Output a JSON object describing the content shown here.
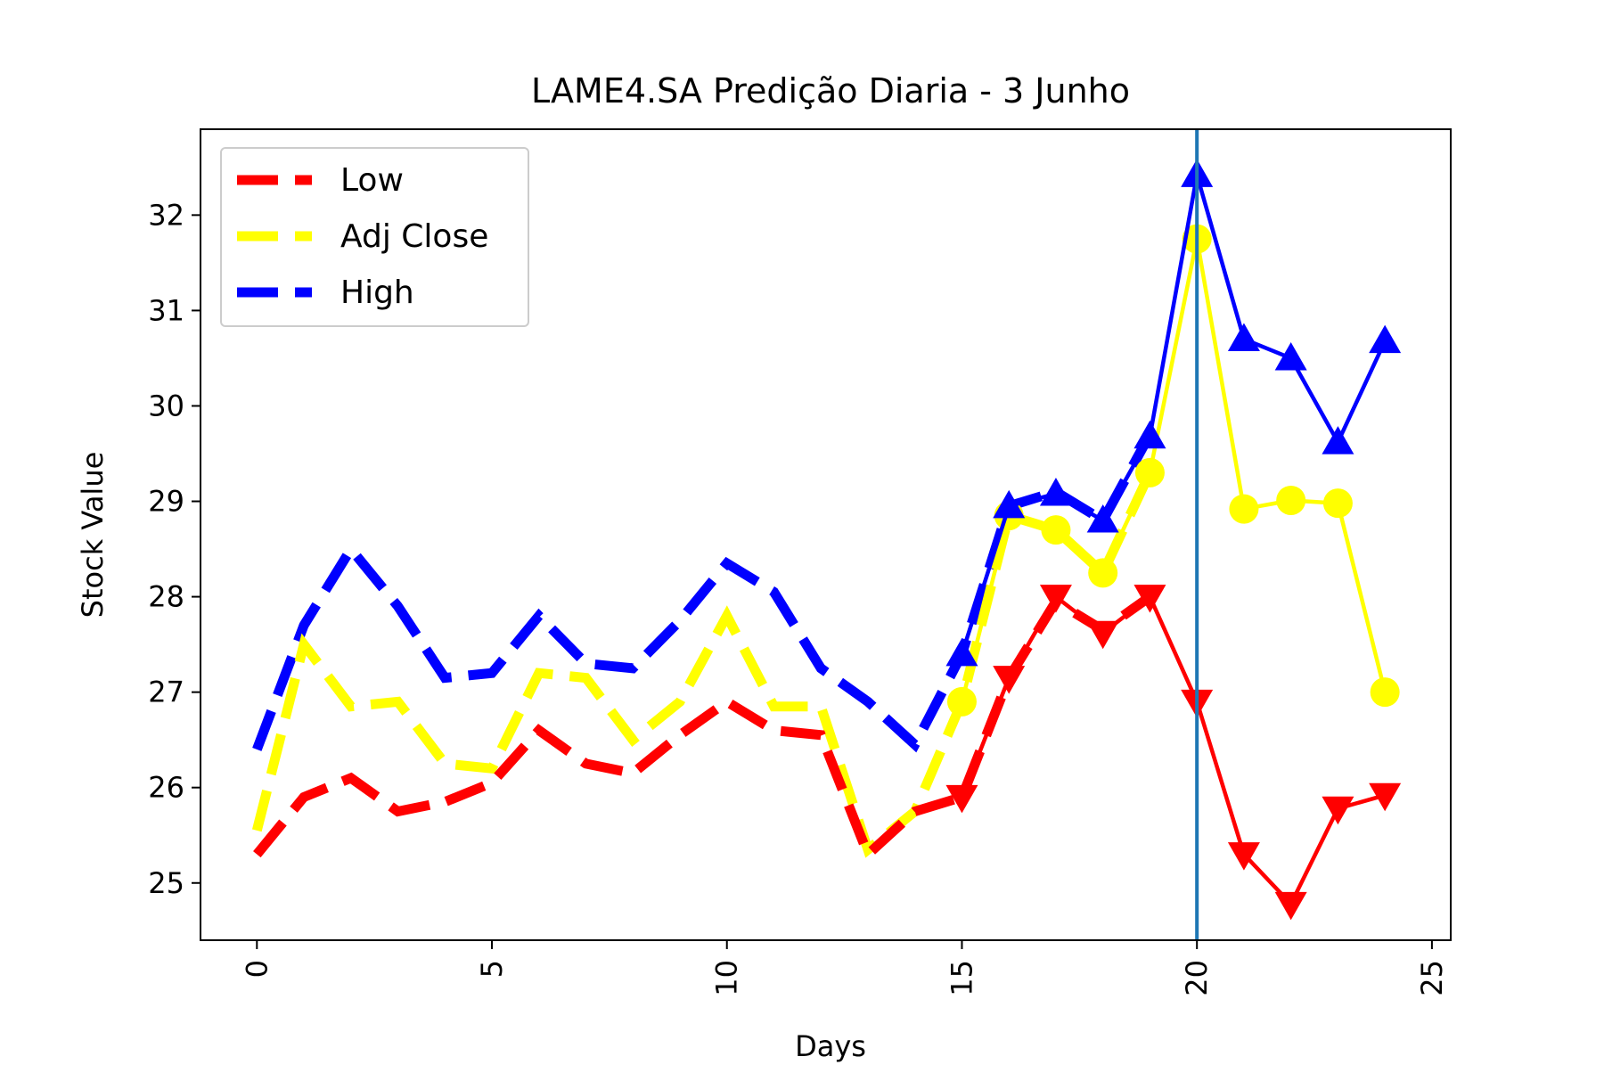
{
  "chart_data": {
    "type": "line",
    "title": "LAME4.SA Predição Diaria - 3 Junho",
    "xlabel": "Days",
    "ylabel": "Stock Value",
    "xlim": [
      -1.2,
      25.4
    ],
    "ylim": [
      24.4,
      32.9
    ],
    "xticks": [
      0,
      5,
      10,
      15,
      20,
      25
    ],
    "yticks": [
      25,
      26,
      27,
      28,
      29,
      30,
      31,
      32
    ],
    "grid": false,
    "legend_position": "top-left",
    "vertical_line": {
      "x": 20,
      "color": "#1f77b4"
    },
    "series": [
      {
        "name": "Low",
        "color": "#ff0000",
        "marker": "triangle-down",
        "dashed_x": [
          0,
          1,
          2,
          3,
          4,
          5,
          6,
          7,
          8,
          9,
          10,
          11,
          12,
          13,
          14,
          15,
          16,
          17,
          18,
          19
        ],
        "dashed_y": [
          25.3,
          25.9,
          26.1,
          25.75,
          25.85,
          26.05,
          26.6,
          26.25,
          26.15,
          26.55,
          26.9,
          26.6,
          26.55,
          25.3,
          25.75,
          25.9,
          27.15,
          27.95,
          27.65,
          28.0
        ],
        "pred_x": [
          15,
          16,
          17,
          18,
          19,
          20,
          21,
          22,
          23,
          24
        ],
        "pred_y": [
          25.9,
          27.15,
          28.0,
          27.62,
          28.0,
          26.9,
          25.3,
          24.78,
          25.78,
          25.92
        ]
      },
      {
        "name": "Adj Close",
        "color": "#ffff00",
        "marker": "circle",
        "dashed_x": [
          0,
          1,
          2,
          3,
          4,
          5,
          6,
          7,
          8,
          9,
          10,
          11,
          12,
          13,
          14,
          15,
          16,
          17,
          18,
          19
        ],
        "dashed_y": [
          25.55,
          27.5,
          26.85,
          26.9,
          26.25,
          26.2,
          27.2,
          27.15,
          26.5,
          26.9,
          27.8,
          26.85,
          26.85,
          25.35,
          25.75,
          26.9,
          28.85,
          28.7,
          28.25,
          29.3
        ],
        "pred_x": [
          15,
          16,
          17,
          18,
          19,
          20,
          21,
          22,
          23,
          24
        ],
        "pred_y": [
          26.9,
          28.85,
          28.7,
          28.25,
          29.3,
          31.75,
          28.92,
          29.01,
          28.98,
          27.0
        ]
      },
      {
        "name": "High",
        "color": "#0000ff",
        "marker": "triangle-up",
        "dashed_x": [
          0,
          1,
          2,
          3,
          4,
          5,
          6,
          7,
          8,
          9,
          10,
          11,
          12,
          13,
          14,
          15,
          16,
          17,
          18,
          19
        ],
        "dashed_y": [
          26.4,
          27.7,
          28.5,
          27.9,
          27.15,
          27.2,
          27.8,
          27.3,
          27.25,
          27.75,
          28.35,
          28.05,
          27.25,
          26.9,
          26.45,
          27.4,
          28.95,
          29.1,
          28.8,
          29.7
        ],
        "pred_x": [
          15,
          16,
          17,
          18,
          19,
          20,
          21,
          22,
          23,
          24
        ],
        "pred_y": [
          27.4,
          28.95,
          29.08,
          28.8,
          29.68,
          32.42,
          30.7,
          30.5,
          29.62,
          30.68
        ]
      }
    ]
  }
}
